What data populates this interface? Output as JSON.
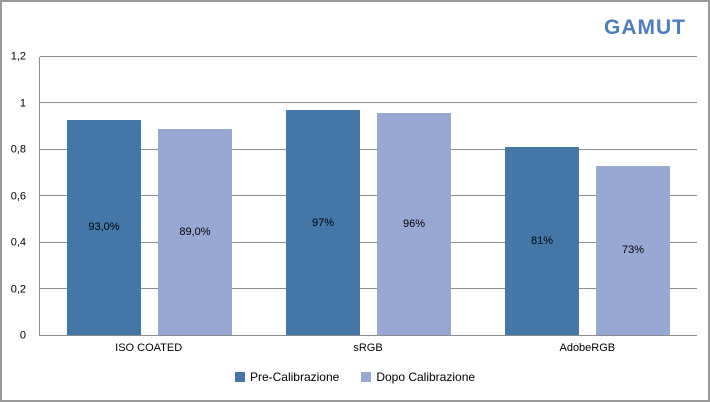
{
  "window": {
    "background": "#ffffff",
    "border_color": "#9a9a9a"
  },
  "title": {
    "text": "GAMUT",
    "color": "#4e7ebe"
  },
  "chart_data": {
    "type": "bar",
    "title": "GAMUT",
    "categories": [
      "ISO COATED",
      "sRGB",
      "AdobeRGB"
    ],
    "series": [
      {
        "name": "Pre-Calibrazione",
        "color": "#4576a8",
        "values": [
          0.93,
          0.97,
          0.81
        ],
        "data_labels": [
          "93,0%",
          "97%",
          "81%"
        ]
      },
      {
        "name": "Dopo Calibrazione",
        "color": "#97a9d2",
        "values": [
          0.89,
          0.96,
          0.73
        ],
        "data_labels": [
          "89,0%",
          "96%",
          "73%"
        ]
      }
    ],
    "xlabel": "",
    "ylabel": "",
    "ylim": [
      0,
      1.2
    ],
    "ytick_interval": 0.2,
    "ytick_labels": [
      "0",
      "0,2",
      "0,4",
      "0,6",
      "0,8",
      "1",
      "1,2"
    ],
    "grid": "horizontal",
    "gridline_color": "#8c8c8c",
    "axis_color": "#8c8c8c",
    "legend_position": "bottom",
    "data_label_position": "center",
    "data_label_color": "#000000"
  }
}
